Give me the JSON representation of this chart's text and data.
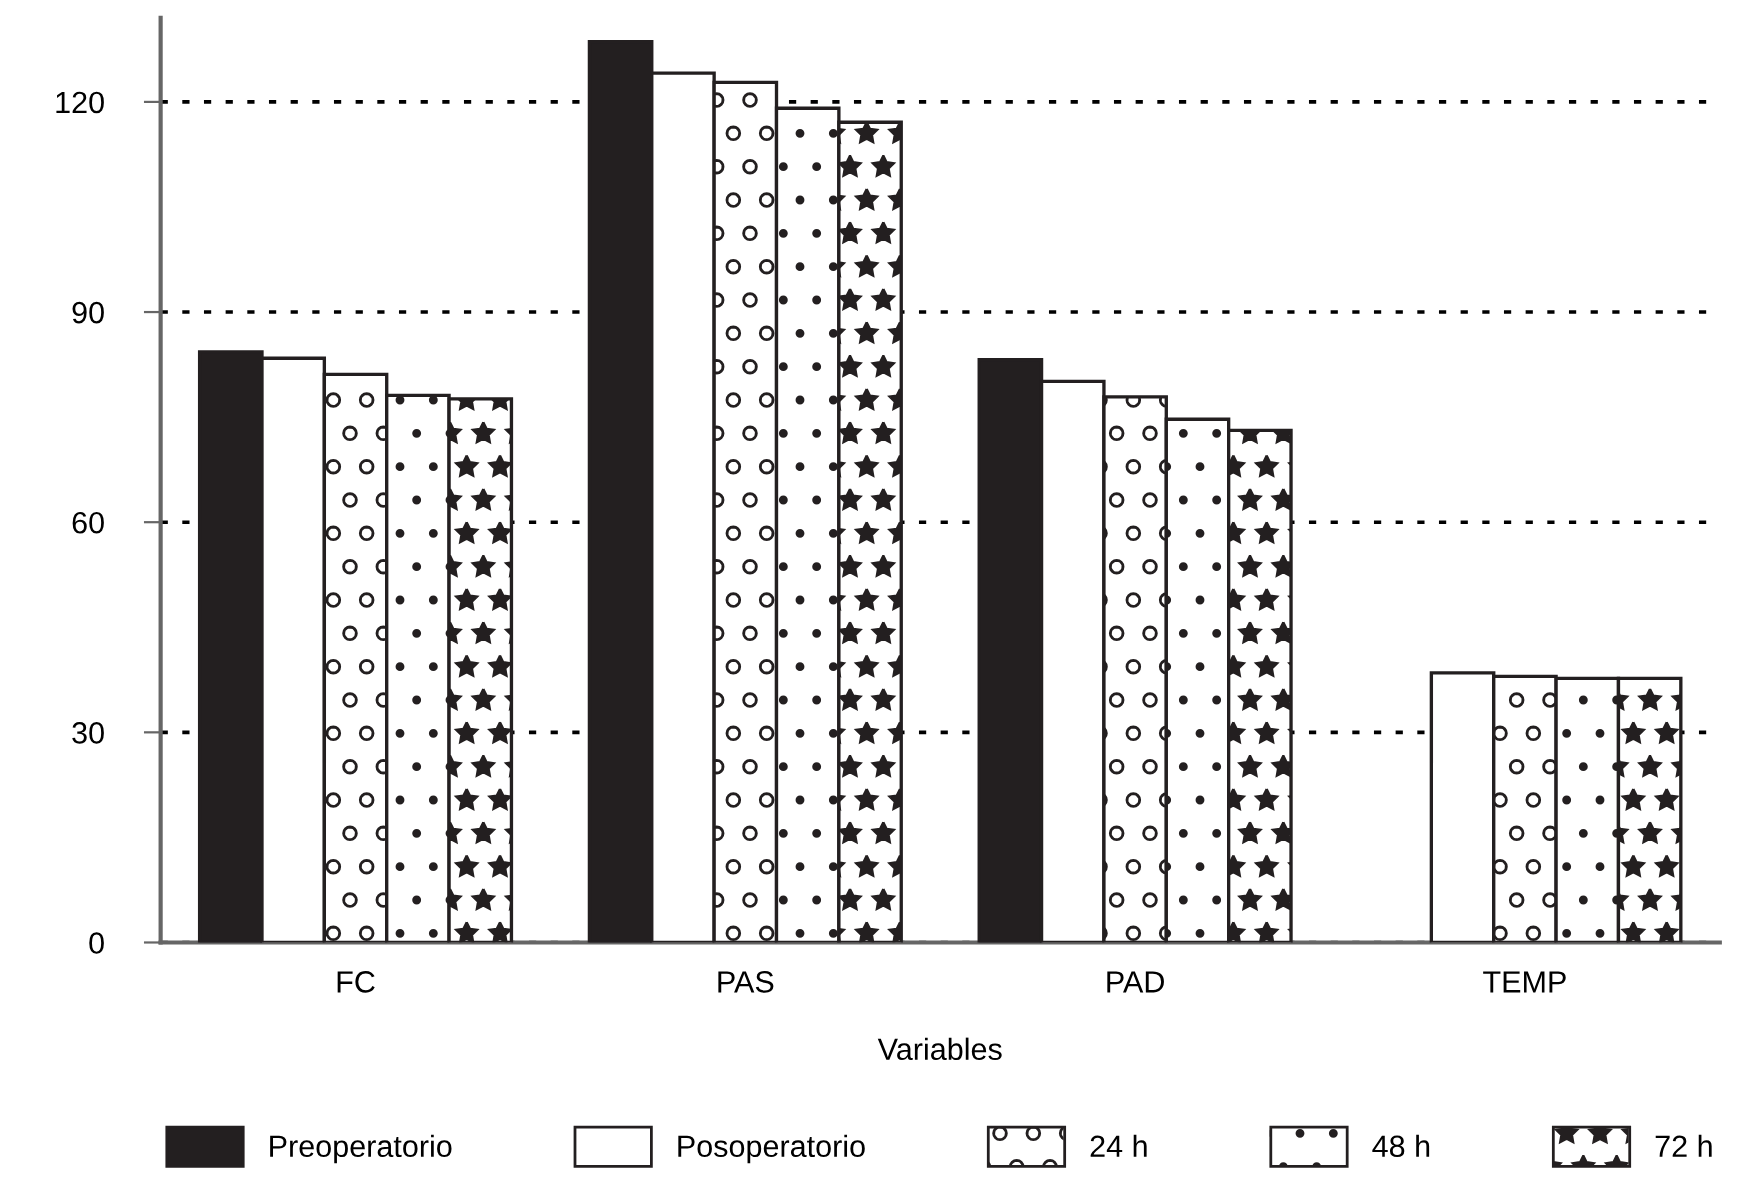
{
  "chart_data": {
    "type": "bar",
    "xlabel": "Variables",
    "categories": [
      "FC",
      "PAS",
      "PAD",
      "TEMP"
    ],
    "series": [
      {
        "name": "Preoperatorio",
        "color": "#231f20",
        "values": [
          84.3,
          128.6,
          83.2,
          null
        ]
      },
      {
        "name": "Posoperatorio",
        "color": "#ffffff",
        "values": [
          83.4,
          124.1,
          80.1,
          38.5
        ]
      },
      {
        "name": "24 h",
        "color": "#ffffff",
        "values": [
          81.1,
          122.8,
          77.9,
          38.0
        ]
      },
      {
        "name": "48 h",
        "color": "#ffffff",
        "values": [
          78.1,
          119.1,
          74.7,
          37.7
        ]
      },
      {
        "name": "72 h",
        "color": "#ffffff",
        "values": [
          77.6,
          117.1,
          73.1,
          37.7
        ]
      }
    ],
    "ylim": [
      0,
      132
    ],
    "yticks": [
      0,
      30,
      60,
      90,
      120
    ],
    "grid": "y",
    "legend": "bottom"
  }
}
